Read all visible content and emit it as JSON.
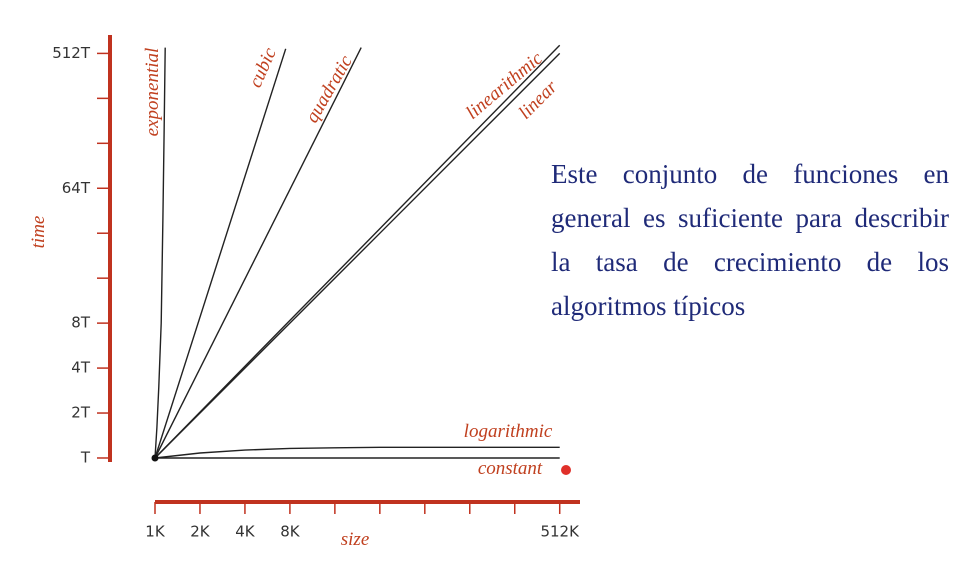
{
  "chart_data": {
    "type": "line",
    "xlabel": "size",
    "ylabel": "time",
    "log_base": 2,
    "axis_color": "#c0321f",
    "label_color": "#c0401f",
    "xlim": [
      1,
      700
    ],
    "ylim": [
      0.94,
      680
    ],
    "xticks": [
      {
        "value": 1,
        "label": "1K"
      },
      {
        "value": 2,
        "label": "2K"
      },
      {
        "value": 4,
        "label": "4K"
      },
      {
        "value": 8,
        "label": "8K"
      },
      {
        "value": 512,
        "label": "512K"
      }
    ],
    "xminor_ticks": [
      16,
      32,
      64,
      128,
      256
    ],
    "yticks": [
      {
        "value": 1,
        "label": "T"
      },
      {
        "value": 2,
        "label": "2T"
      },
      {
        "value": 4,
        "label": "4T"
      },
      {
        "value": 8,
        "label": "8T"
      },
      {
        "value": 64,
        "label": "64T"
      },
      {
        "value": 512,
        "label": "512T"
      }
    ],
    "yminor_ticks": [
      16,
      32,
      128,
      256
    ],
    "series": [
      {
        "name": "exponential",
        "color": "#222222",
        "x": [
          1,
          1.03,
          1.06,
          1.1,
          1.13,
          1.15,
          1.17
        ],
        "values": [
          1,
          1.6,
          3,
          8,
          40,
          150,
          560
        ]
      },
      {
        "name": "cubic",
        "color": "#222222",
        "x": [
          1,
          7.5
        ],
        "values": [
          1,
          550
        ]
      },
      {
        "name": "quadratic",
        "color": "#222222",
        "x": [
          1,
          24
        ],
        "values": [
          1,
          560
        ]
      },
      {
        "name": "linearithmic",
        "color": "#222222",
        "x": [
          1,
          512
        ],
        "values": [
          1,
          580
        ]
      },
      {
        "name": "linear",
        "color": "#222222",
        "x": [
          1,
          512
        ],
        "values": [
          1,
          512
        ]
      },
      {
        "name": "logarithmic",
        "color": "#222222",
        "x": [
          1,
          2,
          4,
          8,
          16,
          32,
          64,
          512
        ],
        "values": [
          1,
          1.08,
          1.13,
          1.16,
          1.17,
          1.18,
          1.18,
          1.18
        ]
      },
      {
        "name": "constant",
        "color": "#222222",
        "x": [
          1,
          512
        ],
        "values": [
          1,
          1
        ]
      }
    ]
  },
  "text_block": "Este conjunto de funciones en general es suficiente para describir la tasa de crecimiento de los algoritmos típicos"
}
